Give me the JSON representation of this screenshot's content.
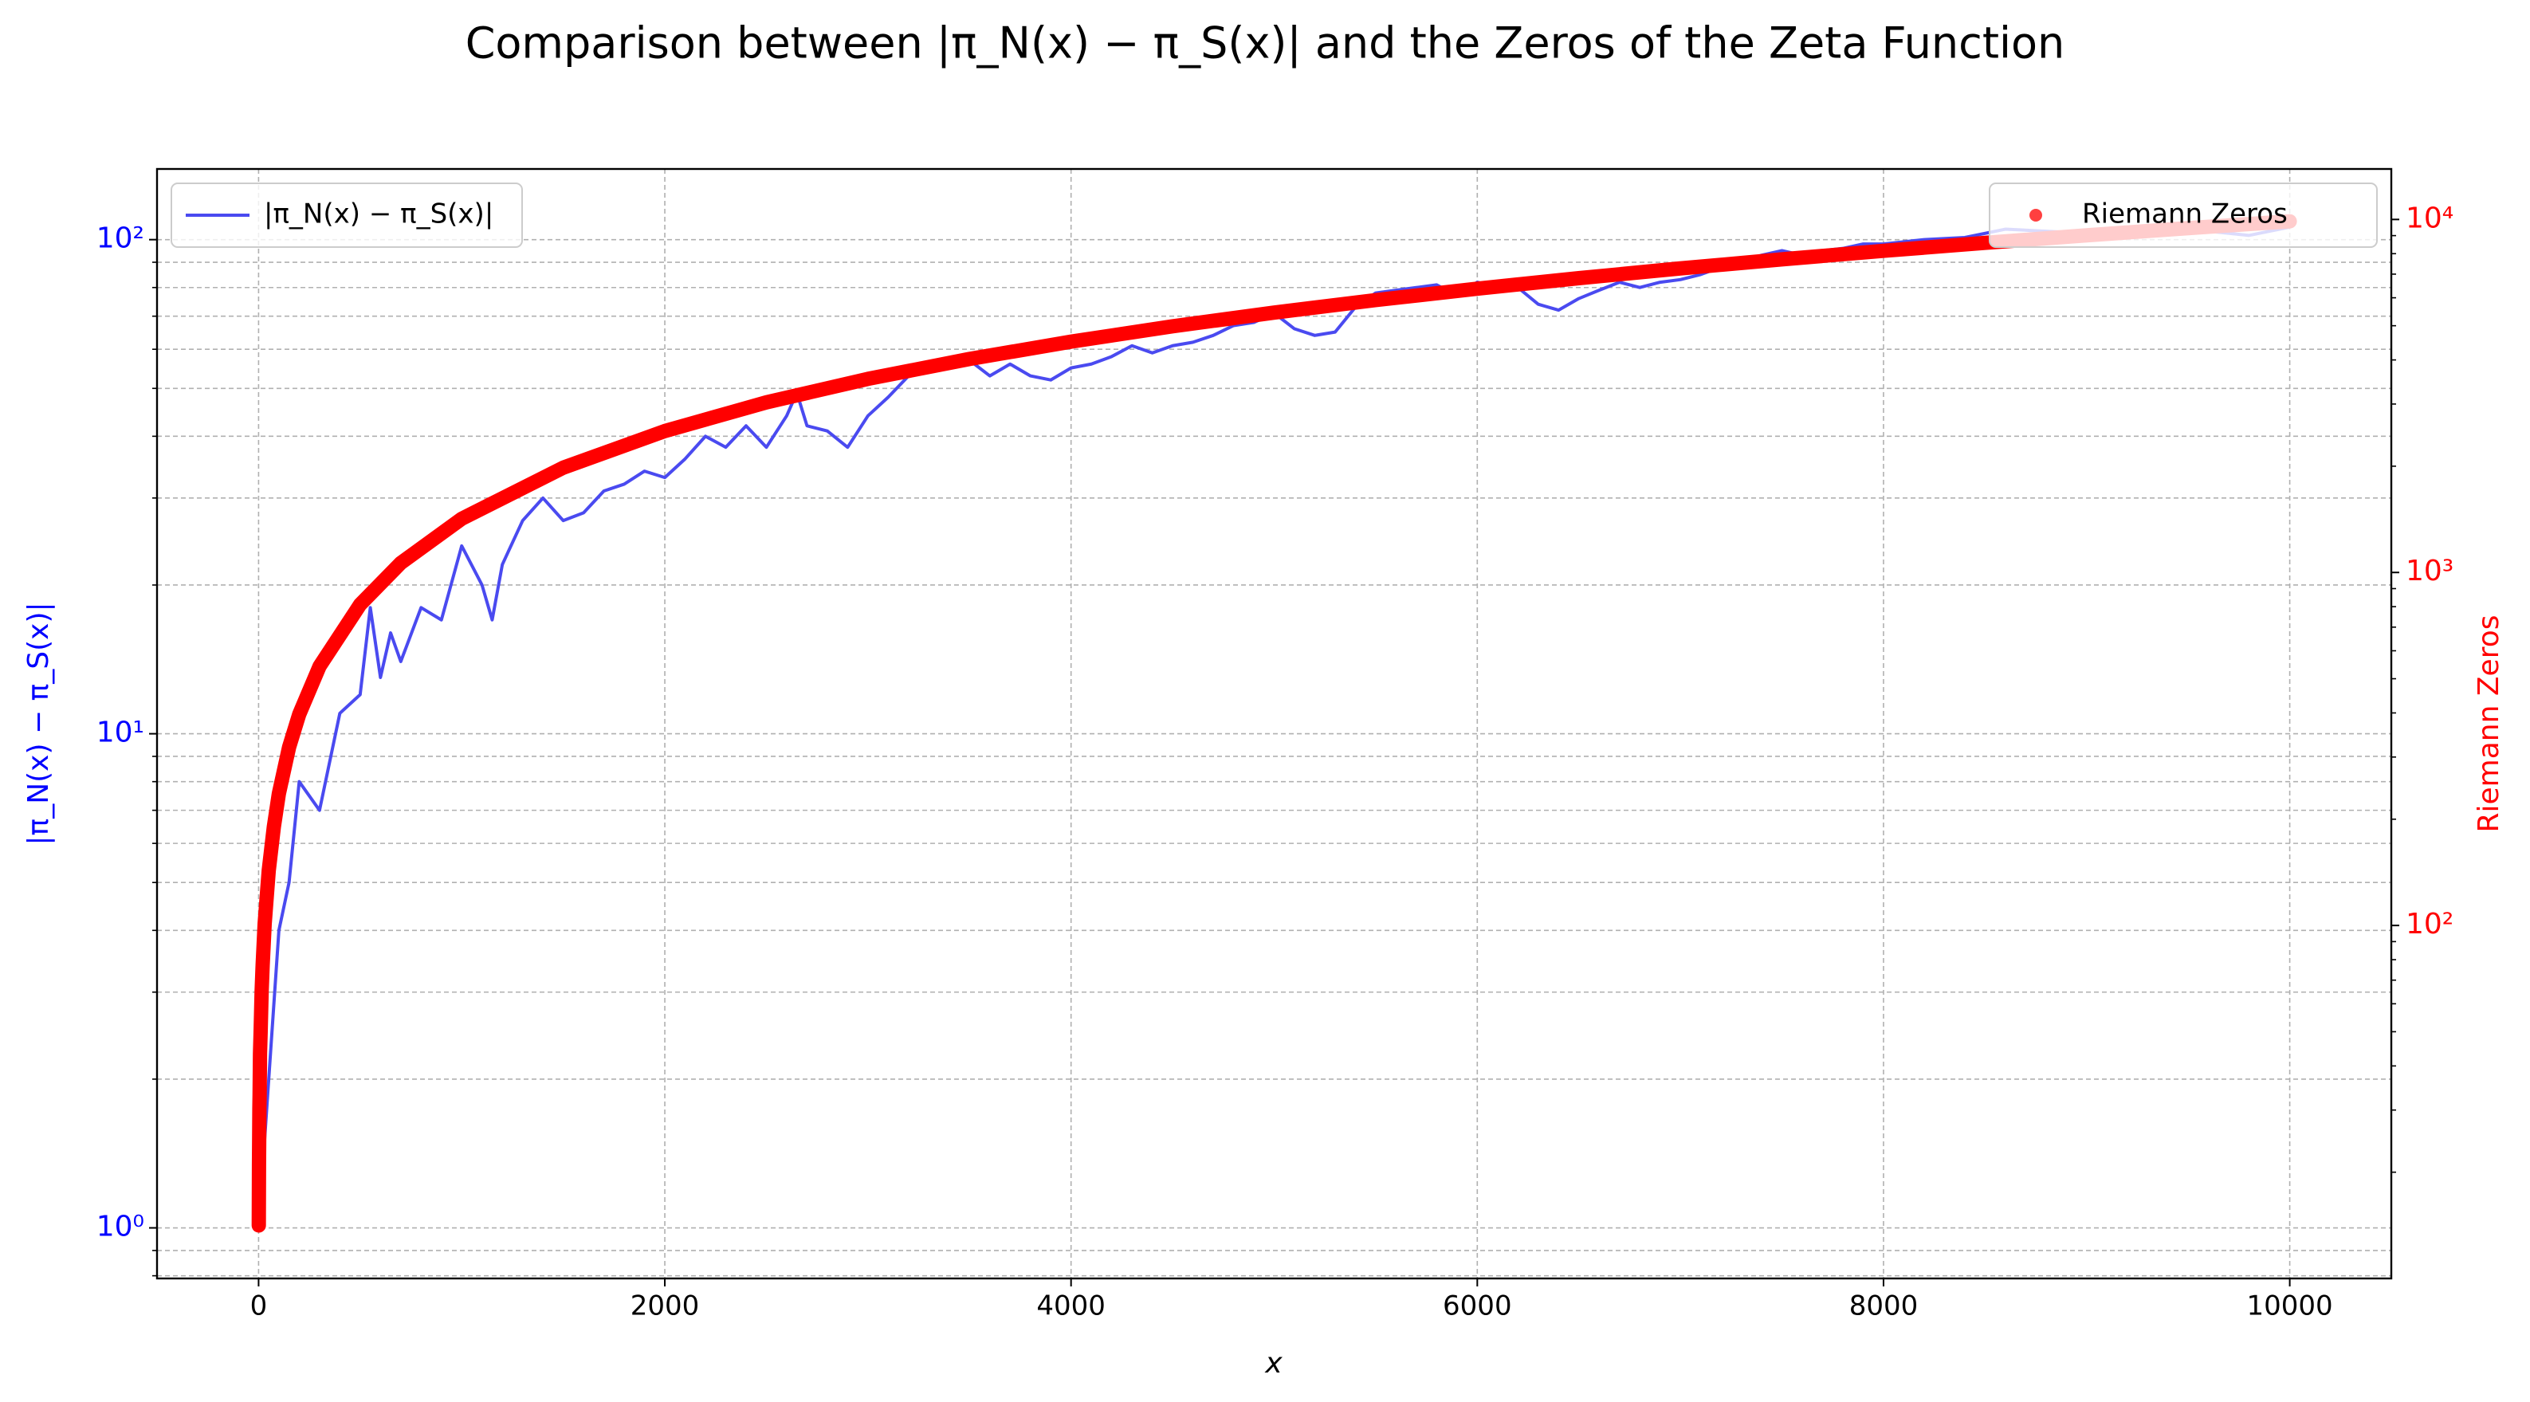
{
  "chart_data": {
    "type": "line",
    "title": "Comparison between |π_N(x) − π_S(x)| and the Zeros of the Zeta Function",
    "xlabel": "x",
    "ylabel": "|π_N(x) − π_S(x)|",
    "y2label": "Riemann Zeros",
    "xlim": [
      -500,
      10500
    ],
    "xticks": [
      0,
      2000,
      4000,
      6000,
      8000,
      10000
    ],
    "yscale": "log",
    "ylim": [
      0.79,
      139
    ],
    "yticks": [
      {
        "value": 1,
        "label": "10⁰"
      },
      {
        "value": 10,
        "label": "10¹"
      },
      {
        "value": 100,
        "label": "10²"
      }
    ],
    "yminorticks": [
      0.8,
      0.9,
      2,
      3,
      4,
      5,
      6,
      7,
      8,
      9,
      20,
      30,
      40,
      50,
      60,
      70,
      80,
      90
    ],
    "y2scale": "log",
    "y2lim": [
      10,
      13900
    ],
    "y2ticks": [
      {
        "value": 100,
        "label": "10²"
      },
      {
        "value": 1000,
        "label": "10³"
      },
      {
        "value": 10000,
        "label": "10⁴"
      }
    ],
    "y2minorticks": [
      20,
      30,
      40,
      50,
      60,
      70,
      80,
      90,
      200,
      300,
      400,
      500,
      600,
      700,
      800,
      900,
      2000,
      3000,
      4000,
      5000,
      6000,
      7000,
      8000,
      9000
    ],
    "grid": true,
    "series": [
      {
        "name": "|π_N(x) − π_S(x)|",
        "type": "line",
        "color": "#4a4af0",
        "legend": "upper left",
        "x": [
          0,
          50,
          100,
          150,
          200,
          300,
          400,
          500,
          550,
          600,
          650,
          700,
          800,
          900,
          1000,
          1100,
          1150,
          1200,
          1300,
          1400,
          1500,
          1600,
          1700,
          1800,
          1900,
          2000,
          2100,
          2200,
          2300,
          2400,
          2500,
          2600,
          2650,
          2700,
          2800,
          2900,
          3000,
          3100,
          3200,
          3300,
          3400,
          3500,
          3600,
          3700,
          3800,
          3900,
          4000,
          4100,
          4200,
          4300,
          4400,
          4500,
          4600,
          4700,
          4800,
          4900,
          5000,
          5100,
          5200,
          5300,
          5400,
          5500,
          5600,
          5700,
          5800,
          5900,
          6000,
          6100,
          6200,
          6300,
          6400,
          6500,
          6600,
          6700,
          6800,
          6900,
          7000,
          7100,
          7200,
          7300,
          7400,
          7500,
          7600,
          7700,
          7800,
          7900,
          8000,
          8200,
          8400,
          8600,
          8800,
          9000,
          9200,
          9400,
          9600,
          9800,
          10000
        ],
        "values": [
          1,
          2,
          4,
          5,
          8,
          7,
          11,
          12,
          18,
          13,
          16,
          14,
          18,
          17,
          24,
          20,
          17,
          22,
          27,
          30,
          27,
          28,
          31,
          32,
          34,
          33,
          36,
          40,
          38,
          42,
          38,
          44,
          49,
          42,
          41,
          38,
          44,
          48,
          53,
          55,
          56,
          57,
          53,
          56,
          53,
          52,
          55,
          56,
          58,
          61,
          59,
          61,
          62,
          64,
          67,
          68,
          71,
          66,
          64,
          65,
          73,
          78,
          79,
          80,
          81,
          77,
          82,
          80,
          80,
          74,
          72,
          76,
          79,
          82,
          80,
          82,
          83,
          85,
          88,
          90,
          93,
          95,
          93,
          95,
          96,
          98,
          98,
          100,
          101,
          105,
          104,
          103,
          104,
          103,
          104,
          102,
          106
        ]
      },
      {
        "name": "Riemann Zeros",
        "type": "scatter",
        "axis": "y2",
        "color": "#ff0000",
        "legend": "upper right",
        "x": [
          1,
          2,
          3,
          4,
          5,
          7,
          10,
          15,
          20,
          30,
          50,
          75,
          100,
          150,
          200,
          300,
          500,
          700,
          1000,
          1500,
          2000,
          2500,
          3000,
          3500,
          4000,
          4500,
          5000,
          5500,
          6000,
          6500,
          7000,
          7500,
          8000,
          8500,
          9000,
          9500,
          10000
        ],
        "values": [
          14.13,
          21.02,
          25.01,
          30.42,
          32.94,
          43.33,
          49.77,
          65.11,
          77.14,
          101.32,
          143.11,
          190,
          236.52,
          319.6,
          396.38,
          541.85,
          811.18,
          1063.5,
          1419.42,
          1981,
          2515.29,
          3033,
          3535,
          4025,
          4507,
          4981,
          5448,
          5910,
          6367,
          6818,
          7266,
          7709,
          8150,
          8585,
          9018,
          9450,
          9878
        ]
      }
    ]
  }
}
